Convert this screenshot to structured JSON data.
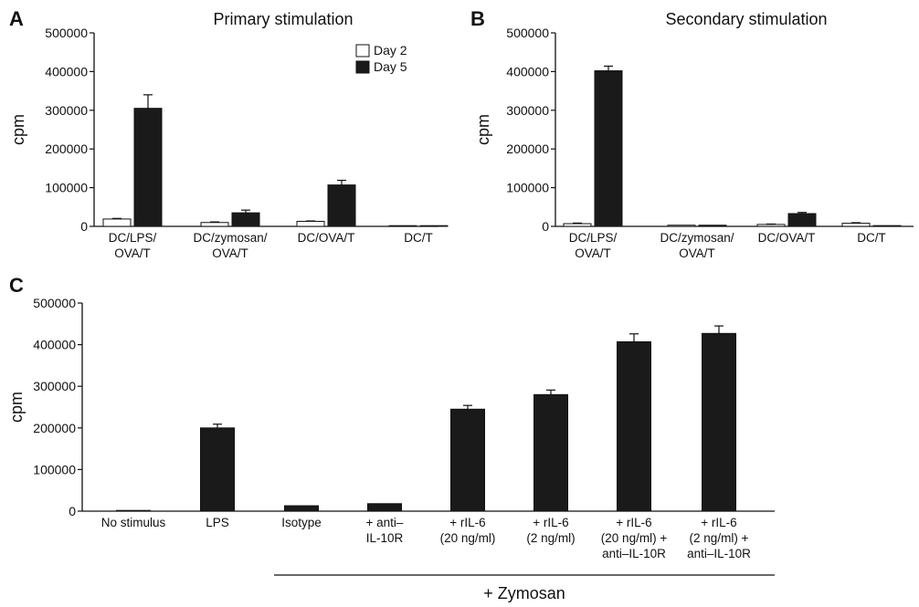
{
  "chart_data": [
    {
      "panel": "A",
      "type": "bar",
      "title": "Primary stimulation",
      "ylabel": "cpm",
      "xlabel": "",
      "ylim": [
        0,
        500000
      ],
      "yticks": [
        "0",
        "100000",
        "200000",
        "300000",
        "400000",
        "500000"
      ],
      "categories": [
        [
          "DC/LPS/",
          "OVA/T"
        ],
        [
          "DC/zymosan/",
          "OVA/T"
        ],
        [
          "DC/OVA/T"
        ],
        [
          "DC/T"
        ]
      ],
      "series": [
        {
          "name": "Day 2",
          "color": "#ffffff",
          "values": [
            19000,
            10000,
            13000,
            500
          ],
          "errors": [
            1500,
            1500,
            1000,
            0
          ]
        },
        {
          "name": "Day 5",
          "color": "#1a1a1a",
          "values": [
            305000,
            35000,
            107000,
            1000
          ],
          "errors": [
            35000,
            7000,
            12000,
            0
          ]
        }
      ],
      "legend_position": "top-right"
    },
    {
      "panel": "B",
      "type": "bar",
      "title": "Secondary stimulation",
      "ylabel": "cpm",
      "xlabel": "",
      "ylim": [
        0,
        500000
      ],
      "yticks": [
        "0",
        "100000",
        "200000",
        "300000",
        "400000",
        "500000"
      ],
      "categories": [
        [
          "DC/LPS/",
          "OVA/T"
        ],
        [
          "DC/zymosan/",
          "OVA/T"
        ],
        [
          "DC/OVA/T"
        ],
        [
          "DC/T"
        ]
      ],
      "series": [
        {
          "name": "Day 2",
          "color": "#ffffff",
          "values": [
            7000,
            3000,
            5000,
            8000
          ],
          "errors": [
            1500,
            0,
            1000,
            1500
          ]
        },
        {
          "name": "Day 5",
          "color": "#1a1a1a",
          "values": [
            402000,
            3000,
            33000,
            2000
          ],
          "errors": [
            12000,
            0,
            3000,
            0
          ]
        }
      ]
    },
    {
      "panel": "C",
      "type": "bar",
      "title": "",
      "ylabel": "cpm",
      "xlabel": "",
      "ylim": [
        0,
        500000
      ],
      "yticks": [
        "0",
        "100000",
        "200000",
        "300000",
        "400000",
        "500000"
      ],
      "categories": [
        [
          "No stimulus"
        ],
        [
          "LPS"
        ],
        [
          "Isotype"
        ],
        [
          "+ anti–",
          "IL-10R"
        ],
        [
          "+ rIL-6",
          "(20 ng/ml)"
        ],
        [
          "+ rIL-6",
          "(2 ng/ml)"
        ],
        [
          "+ rIL-6",
          "(20 ng/ml) +",
          "anti–IL-10R"
        ],
        [
          "+ rIL-6",
          "(2 ng/ml) +",
          "anti–IL-10R"
        ]
      ],
      "series": [
        {
          "name": "",
          "color": "#1a1a1a",
          "values": [
            0,
            200000,
            13000,
            18000,
            245000,
            280000,
            407000,
            427000
          ],
          "errors": [
            0,
            9000,
            0,
            0,
            9000,
            11000,
            19000,
            18000
          ]
        }
      ],
      "group_label": "+ Zymosan",
      "group_from_category": 2
    }
  ]
}
